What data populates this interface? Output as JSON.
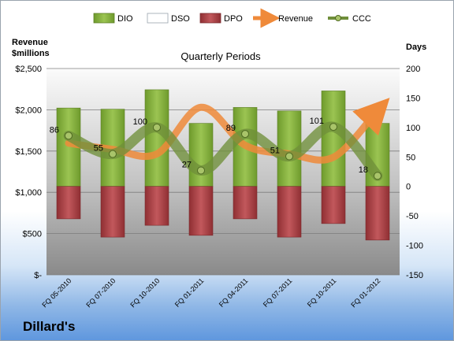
{
  "chart_data": {
    "type": "bar",
    "title": "Quarterly Periods",
    "company": "Dillard's",
    "left_axis_title": "Revenue\n$millions",
    "right_axis_title": "Days",
    "left_axis": {
      "ylim": [
        0,
        2500
      ],
      "ticks": [
        0,
        500,
        1000,
        1500,
        2000,
        2500
      ],
      "tick_labels": [
        "$-",
        "$500",
        "$1,000",
        "$1,500",
        "$2,000",
        "$2,500"
      ]
    },
    "right_axis": {
      "ylim": [
        -150,
        200
      ],
      "ticks": [
        -150,
        -100,
        -50,
        0,
        50,
        100,
        150,
        200
      ],
      "tick_labels": [
        "-150",
        "-100",
        "-50",
        "0",
        "50",
        "100",
        "150",
        "200"
      ]
    },
    "categories": [
      "FQ 05-2010",
      "FQ 07-2010",
      "FQ 10-2010",
      "FQ 01-2011",
      "FQ 04-2011",
      "FQ 07-2011",
      "FQ 10-2011",
      "FQ 01-2012"
    ],
    "legend_position": "top",
    "grid": true,
    "series": [
      {
        "name": "DIO",
        "kind": "bar_up",
        "axis": "right",
        "color": "#8db441",
        "values": [
          133,
          131,
          164,
          107,
          134,
          128,
          162,
          107
        ]
      },
      {
        "name": "DSO",
        "kind": "bar_up",
        "axis": "right",
        "color": "#ffffff",
        "values": [
          0,
          0,
          0,
          0,
          0,
          0,
          0,
          0
        ]
      },
      {
        "name": "DPO",
        "kind": "bar_down",
        "axis": "right",
        "color": "#b94a4e",
        "values": [
          55,
          86,
          66,
          83,
          55,
          86,
          63,
          91
        ]
      },
      {
        "name": "Revenue",
        "kind": "line",
        "axis": "left",
        "color": "#ef8a3a",
        "values": [
          1595,
          1520,
          1465,
          2030,
          1570,
          1465,
          1425,
          1990
        ]
      },
      {
        "name": "CCC",
        "kind": "line",
        "axis": "right",
        "color": "#6f8f3a",
        "values": [
          86,
          55,
          100,
          27,
          89,
          51,
          101,
          18
        ]
      }
    ],
    "ccc_labels": [
      "86",
      "55",
      "100",
      "27",
      "89",
      "51",
      "101",
      "18"
    ]
  }
}
